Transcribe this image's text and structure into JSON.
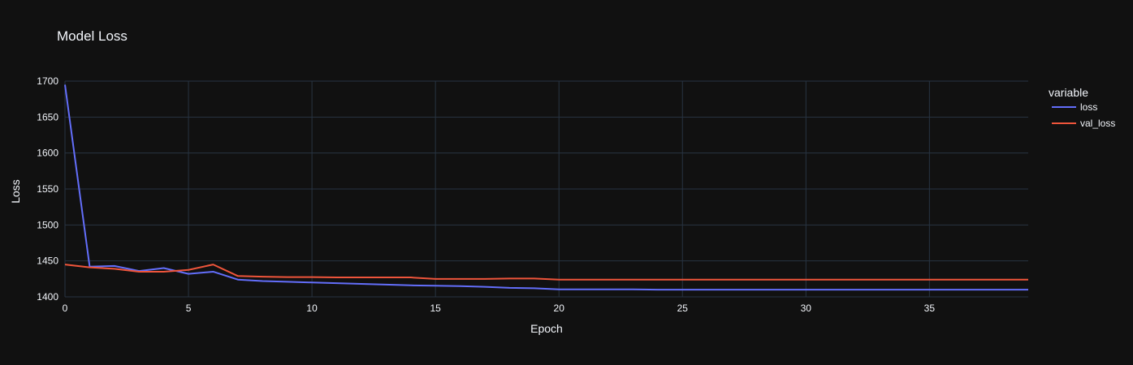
{
  "colors": {
    "background": "#111111",
    "grid": "#283442",
    "text": "#f2f5fa",
    "loss": "#636efa",
    "val_loss": "#ef553b"
  },
  "chart_data": {
    "type": "line",
    "title": "Model Loss",
    "xlabel": "Epoch",
    "ylabel": "Loss",
    "xlim": [
      0,
      39
    ],
    "ylim": [
      1400,
      1700
    ],
    "xticks": [
      0,
      5,
      10,
      15,
      20,
      25,
      30,
      35
    ],
    "yticks": [
      1400,
      1450,
      1500,
      1550,
      1600,
      1650,
      1700
    ],
    "grid": true,
    "legend": {
      "title": "variable",
      "position": "top-right"
    },
    "x": [
      0,
      1,
      2,
      3,
      4,
      5,
      6,
      7,
      8,
      9,
      10,
      11,
      12,
      13,
      14,
      15,
      16,
      17,
      18,
      19,
      20,
      21,
      22,
      23,
      24,
      25,
      26,
      27,
      28,
      29,
      30,
      31,
      32,
      33,
      34,
      35,
      36,
      37,
      38,
      39
    ],
    "series": [
      {
        "name": "loss",
        "values": [
          1695,
          1442,
          1443,
          1436,
          1440,
          1432,
          1435,
          1424,
          1422,
          1421,
          1420,
          1419,
          1418,
          1417,
          1416,
          1415.5,
          1415,
          1414,
          1412.5,
          1412,
          1410.5,
          1410.5,
          1410.5,
          1410.5,
          1410,
          1410,
          1410,
          1410,
          1410,
          1410,
          1410,
          1410,
          1410,
          1410,
          1410,
          1410,
          1410,
          1410,
          1410,
          1410
        ]
      },
      {
        "name": "val_loss",
        "values": [
          1445,
          1441,
          1439,
          1435,
          1435,
          1437.5,
          1445,
          1429,
          1428,
          1427.5,
          1427.5,
          1427,
          1427,
          1427,
          1427,
          1425,
          1425,
          1425,
          1425.5,
          1425.5,
          1424,
          1424,
          1424,
          1424,
          1424,
          1424,
          1424,
          1424,
          1424,
          1424,
          1424,
          1424,
          1424,
          1424,
          1424,
          1424,
          1424,
          1424,
          1424,
          1424
        ]
      }
    ]
  }
}
